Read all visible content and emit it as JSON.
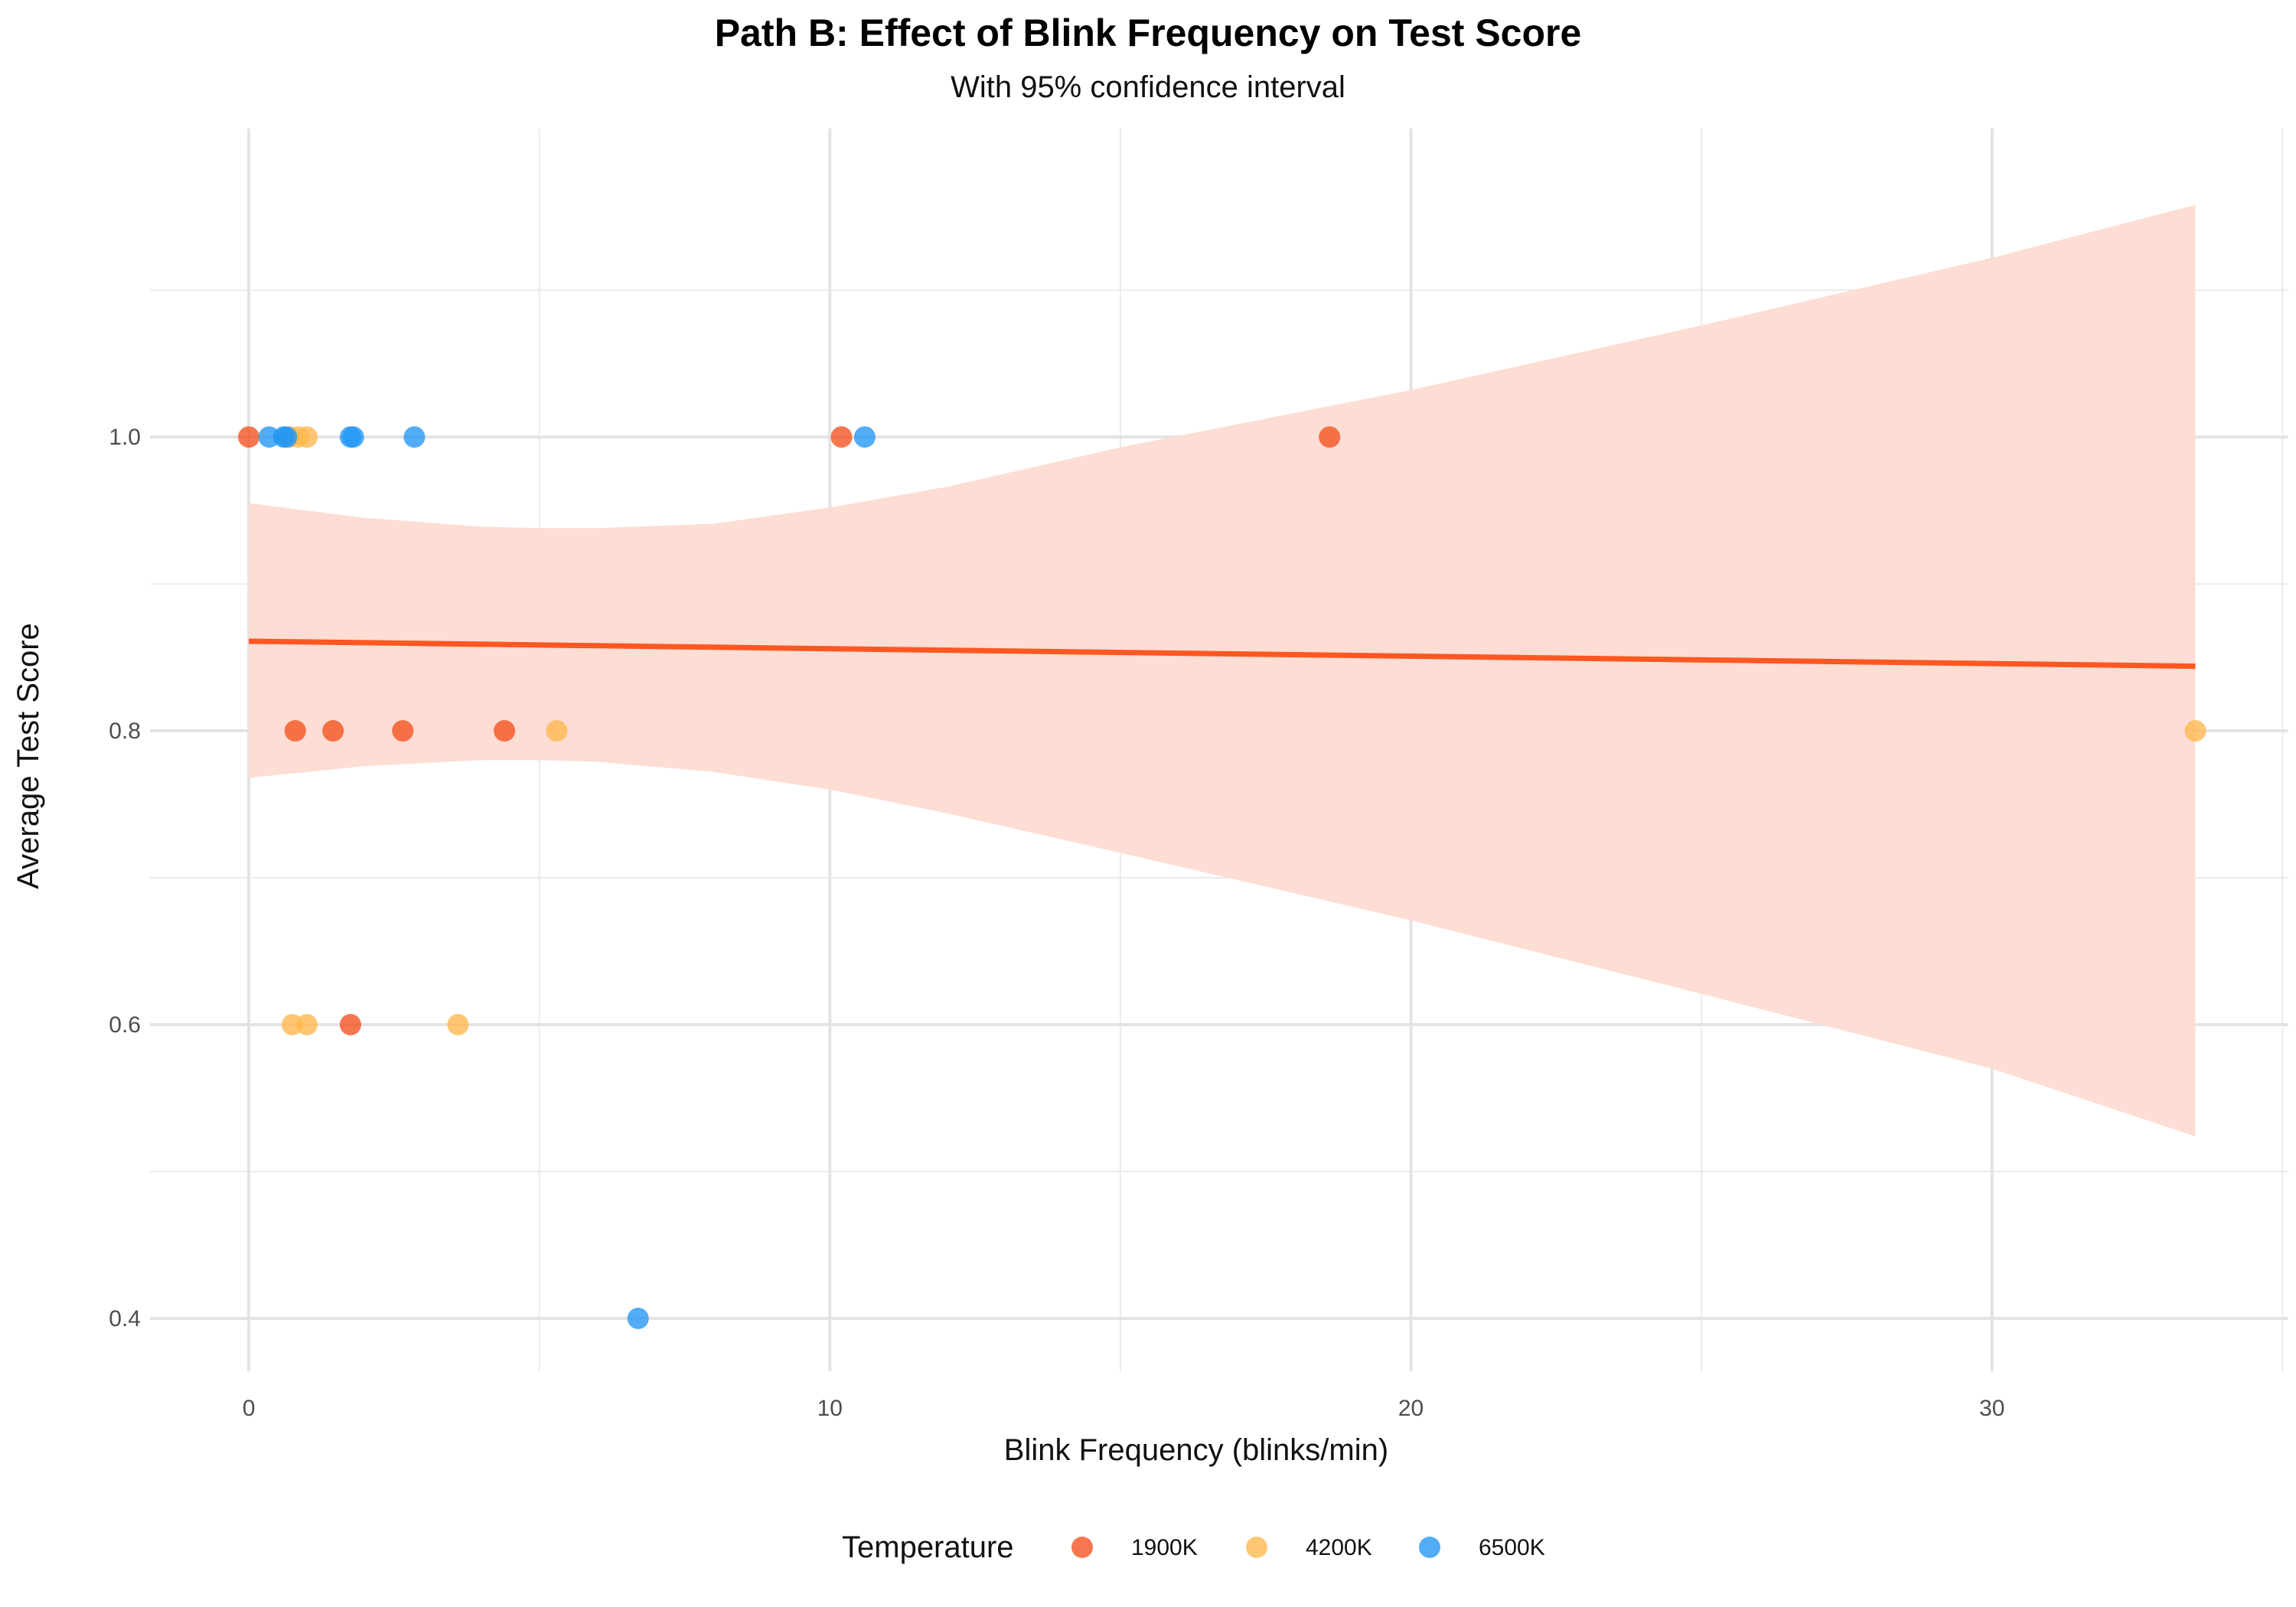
{
  "chart_data": {
    "type": "scatter",
    "title": "Path B: Effect of Blink Frequency on Test Score",
    "subtitle": "With 95% confidence interval",
    "xlabel": "Blink Frequency (blinks/min)",
    "ylabel": "Average Test Score",
    "xlim": [
      -1.7,
      35.1
    ],
    "ylim": [
      0.364,
      1.21
    ],
    "x_ticks": [
      0,
      10,
      20,
      30
    ],
    "x_tick_labels": [
      "0",
      "10",
      "20",
      "30"
    ],
    "y_ticks": [
      0.4,
      0.6,
      0.8,
      1.0
    ],
    "y_tick_labels": [
      "0.4",
      "0.6",
      "0.8",
      "1.0"
    ],
    "x_minor_ticks": [
      5,
      15,
      25,
      35
    ],
    "y_minor_ticks": [
      0.5,
      0.7,
      0.9,
      1.1
    ],
    "grid": true,
    "legend": {
      "title": "Temperature",
      "position": "bottom"
    },
    "series": [
      {
        "name": "1900K",
        "color": "#F4511E",
        "points": [
          [
            0.0,
            1.0
          ],
          [
            10.2,
            1.0
          ],
          [
            18.6,
            1.0
          ],
          [
            0.8,
            0.8
          ],
          [
            1.45,
            0.8
          ],
          [
            2.65,
            0.8
          ],
          [
            4.4,
            0.8
          ],
          [
            1.75,
            0.6
          ]
        ]
      },
      {
        "name": "4200K",
        "color": "#FFB74D",
        "points": [
          [
            0.7,
            1.0
          ],
          [
            0.85,
            1.0
          ],
          [
            1.0,
            1.0
          ],
          [
            5.3,
            0.8
          ],
          [
            33.5,
            0.8
          ],
          [
            0.75,
            0.6
          ],
          [
            1.0,
            0.6
          ],
          [
            3.6,
            0.6
          ]
        ]
      },
      {
        "name": "6500K",
        "color": "#2196F3",
        "points": [
          [
            0.35,
            1.0
          ],
          [
            0.6,
            1.0
          ],
          [
            0.65,
            1.0
          ],
          [
            1.75,
            1.0
          ],
          [
            1.8,
            1.0
          ],
          [
            2.85,
            1.0
          ],
          [
            10.6,
            1.0
          ],
          [
            6.7,
            0.4
          ]
        ]
      }
    ],
    "fit": {
      "color": "#FF5722",
      "band_color": "#FDDBD2",
      "line": [
        [
          0.0,
          0.861
        ],
        [
          33.5,
          0.844
        ]
      ],
      "band": [
        [
          0.0,
          0.768,
          0.955
        ],
        [
          2.0,
          0.776,
          0.945
        ],
        [
          4.0,
          0.78,
          0.939
        ],
        [
          5.0,
          0.78,
          0.938
        ],
        [
          6.0,
          0.779,
          0.938
        ],
        [
          8.0,
          0.772,
          0.941
        ],
        [
          10.0,
          0.76,
          0.952
        ],
        [
          12.0,
          0.744,
          0.966
        ],
        [
          15.0,
          0.717,
          0.993
        ],
        [
          20.0,
          0.671,
          1.032
        ],
        [
          25.0,
          0.621,
          1.076
        ],
        [
          30.0,
          0.57,
          1.122
        ],
        [
          33.5,
          0.524,
          1.158
        ]
      ]
    }
  }
}
